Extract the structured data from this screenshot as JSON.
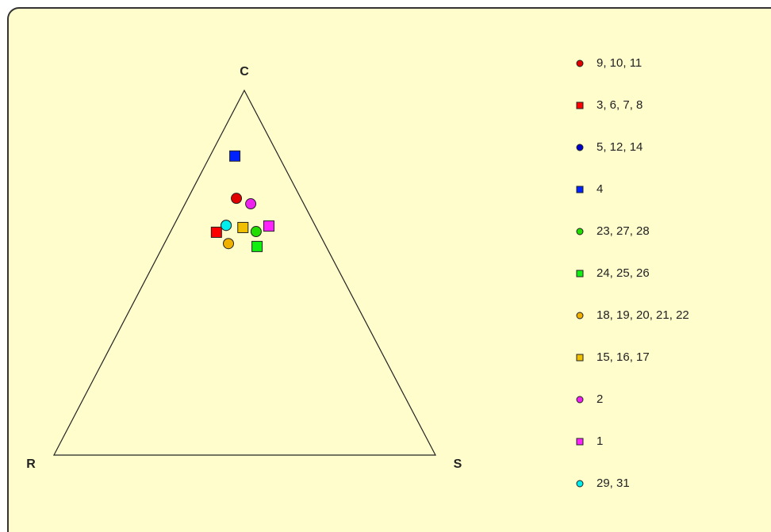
{
  "chart_data": {
    "type": "ternary",
    "vertices": [
      "C",
      "R",
      "S"
    ],
    "series": [
      {
        "name": "9, 10, 11",
        "color": "#e00000",
        "marker": "circle",
        "values": [
          0.704,
          0.169,
          0.127
        ]
      },
      {
        "name": "3, 6, 7, 8",
        "color": "#ff0000",
        "marker": "square",
        "values": [
          0.611,
          0.268,
          0.121
        ]
      },
      {
        "name": "5, 12, 14",
        "color": "#0000cc",
        "marker": "circle",
        "values": [
          0.63,
          0.233,
          0.137
        ]
      },
      {
        "name": "4",
        "color": "#0022ff",
        "marker": "square",
        "values": [
          0.82,
          0.115,
          0.065
        ]
      },
      {
        "name": "23, 27, 28",
        "color": "#22dd00",
        "marker": "circle",
        "values": [
          0.613,
          0.163,
          0.224
        ]
      },
      {
        "name": "24, 25, 26",
        "color": "#11ee11",
        "marker": "square",
        "values": [
          0.572,
          0.181,
          0.247
        ]
      },
      {
        "name": "18, 19, 20, 21, 22",
        "color": "#f0b000",
        "marker": "circle",
        "values": [
          0.58,
          0.252,
          0.168
        ]
      },
      {
        "name": "15, 16, 17",
        "color": "#f0c000",
        "marker": "square",
        "values": [
          0.624,
          0.192,
          0.184
        ]
      },
      {
        "name": "2",
        "color": "#ee22ee",
        "marker": "circle",
        "values": [
          0.689,
          0.139,
          0.172
        ]
      },
      {
        "name": "1",
        "color": "#ff22ff",
        "marker": "square",
        "values": [
          0.628,
          0.122,
          0.25
        ]
      },
      {
        "name": "29, 31",
        "color": "#00eeee",
        "marker": "circle",
        "values": [
          0.63,
          0.233,
          0.137
        ]
      }
    ]
  }
}
